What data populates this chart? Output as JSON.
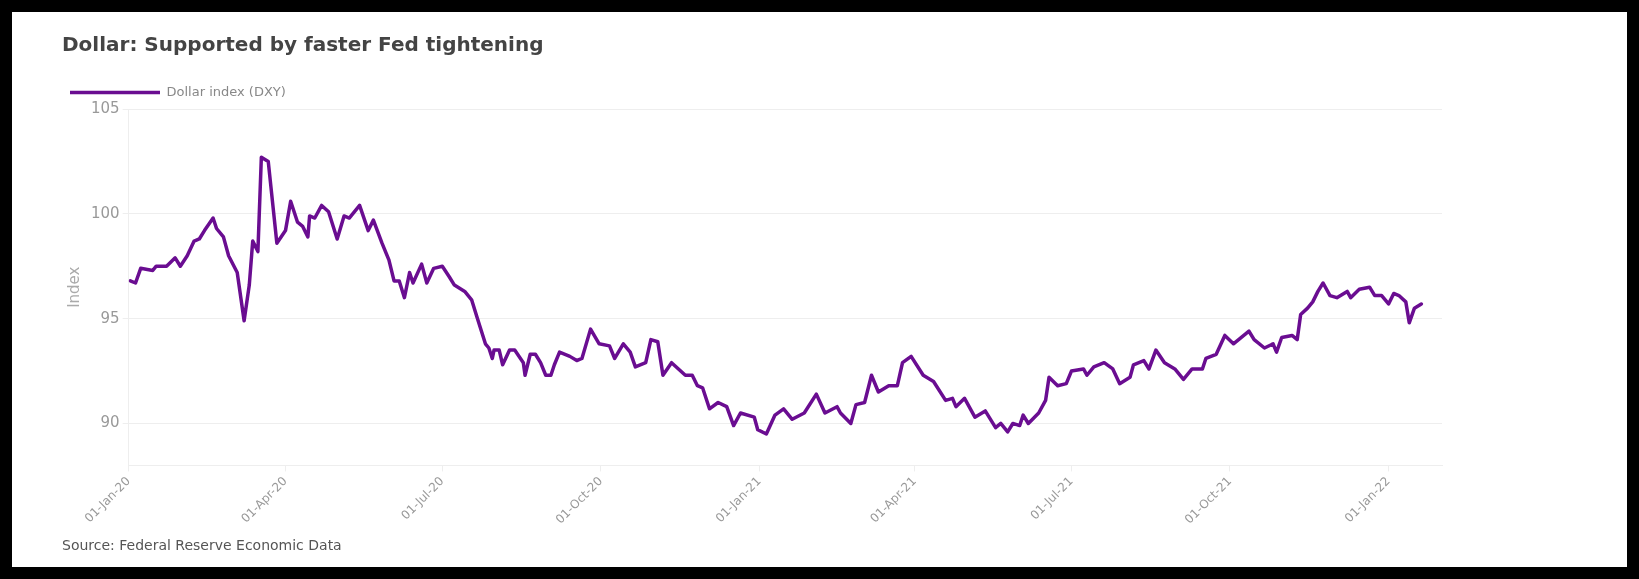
{
  "chart_data": {
    "type": "line",
    "title": "Dollar: Supported by faster Fed tightening",
    "ylabel": "Index",
    "annotations": [
      "Source: Federal Reserve Economic Data"
    ],
    "legend": "top left",
    "grid": "y",
    "marker": "none",
    "line_style": "solid",
    "xlim": [
      "2020-01-01",
      "2022-02-01"
    ],
    "xticks": [
      {
        "value": "2020-01-01",
        "label": "01-Jan-20"
      },
      {
        "value": "2020-04-01",
        "label": "01-Apr-20"
      },
      {
        "value": "2020-07-01",
        "label": "01-Jul-20"
      },
      {
        "value": "2020-10-01",
        "label": "01-Oct-20"
      },
      {
        "value": "2021-01-01",
        "label": "01-Jan-21"
      },
      {
        "value": "2021-04-01",
        "label": "01-Apr-21"
      },
      {
        "value": "2021-07-01",
        "label": "01-Jul-21"
      },
      {
        "value": "2021-10-01",
        "label": "01-Oct-21"
      },
      {
        "value": "2022-01-01",
        "label": "01-Jan-22"
      }
    ],
    "ylim": [
      88,
      105
    ],
    "yticks": [
      90,
      95,
      100,
      105
    ],
    "x": [
      "2020-01-02",
      "2020-01-05",
      "2020-01-08",
      "2020-01-15",
      "2020-01-17",
      "2020-01-23",
      "2020-01-28",
      "2020-01-31",
      "2020-02-04",
      "2020-02-08",
      "2020-02-11",
      "2020-02-14",
      "2020-02-19",
      "2020-02-21",
      "2020-02-25",
      "2020-02-28",
      "2020-03-04",
      "2020-03-08",
      "2020-03-11",
      "2020-03-13",
      "2020-03-16",
      "2020-03-18",
      "2020-03-22",
      "2020-03-27",
      "2020-04-01",
      "2020-04-04",
      "2020-04-08",
      "2020-04-11",
      "2020-04-14",
      "2020-04-15",
      "2020-04-18",
      "2020-04-22",
      "2020-04-26",
      "2020-05-01",
      "2020-05-05",
      "2020-05-08",
      "2020-05-14",
      "2020-05-19",
      "2020-05-22",
      "2020-05-27",
      "2020-05-31",
      "2020-06-03",
      "2020-06-06",
      "2020-06-09",
      "2020-06-12",
      "2020-06-14",
      "2020-06-19",
      "2020-06-22",
      "2020-06-26",
      "2020-07-01",
      "2020-07-05",
      "2020-07-08",
      "2020-07-14",
      "2020-07-18",
      "2020-07-21",
      "2020-07-26",
      "2020-07-28",
      "2020-07-30",
      "2020-07-31",
      "2020-08-03",
      "2020-08-05",
      "2020-08-09",
      "2020-08-12",
      "2020-08-17",
      "2020-08-18",
      "2020-08-21",
      "2020-08-24",
      "2020-08-27",
      "2020-08-30",
      "2020-09-02",
      "2020-09-04",
      "2020-09-07",
      "2020-09-13",
      "2020-09-17",
      "2020-09-20",
      "2020-09-25",
      "2020-09-30",
      "2020-10-06",
      "2020-10-09",
      "2020-10-14",
      "2020-10-18",
      "2020-10-21",
      "2020-10-27",
      "2020-10-30",
      "2020-11-03",
      "2020-11-06",
      "2020-11-11",
      "2020-11-19",
      "2020-11-23",
      "2020-11-26",
      "2020-11-29",
      "2020-12-03",
      "2020-12-08",
      "2020-12-13",
      "2020-12-17",
      "2020-12-21",
      "2020-12-29",
      "2020-12-31",
      "2021-01-05",
      "2021-01-10",
      "2021-01-15",
      "2021-01-20",
      "2021-01-27",
      "2021-02-03",
      "2021-02-08",
      "2021-02-15",
      "2021-02-17",
      "2021-02-23",
      "2021-02-26",
      "2021-03-03",
      "2021-03-07",
      "2021-03-11",
      "2021-03-17",
      "2021-03-22",
      "2021-03-25",
      "2021-03-30",
      "2021-04-06",
      "2021-04-12",
      "2021-04-19",
      "2021-04-23",
      "2021-04-25",
      "2021-04-30",
      "2021-05-06",
      "2021-05-12",
      "2021-05-18",
      "2021-05-21",
      "2021-05-25",
      "2021-05-28",
      "2021-06-01",
      "2021-06-03",
      "2021-06-06",
      "2021-06-12",
      "2021-06-16",
      "2021-06-18",
      "2021-06-23",
      "2021-06-28",
      "2021-07-01",
      "2021-07-08",
      "2021-07-10",
      "2021-07-14",
      "2021-07-20",
      "2021-07-25",
      "2021-07-29",
      "2021-08-04",
      "2021-08-06",
      "2021-08-12",
      "2021-08-15",
      "2021-08-19",
      "2021-08-24",
      "2021-08-30",
      "2021-09-04",
      "2021-09-09",
      "2021-09-15",
      "2021-09-17",
      "2021-09-23",
      "2021-09-28",
      "2021-10-03",
      "2021-10-12",
      "2021-10-15",
      "2021-10-21",
      "2021-10-26",
      "2021-10-28",
      "2021-10-31",
      "2021-11-06",
      "2021-11-09",
      "2021-11-11",
      "2021-11-15",
      "2021-11-18",
      "2021-11-21",
      "2021-11-24",
      "2021-11-28",
      "2021-12-02",
      "2021-12-08",
      "2021-12-10",
      "2021-12-15",
      "2021-12-21",
      "2021-12-24",
      "2021-12-28",
      "2022-01-01",
      "2022-01-04",
      "2022-01-07",
      "2022-01-11",
      "2022-01-13",
      "2022-01-16",
      "2022-01-20"
    ],
    "series": [
      {
        "name": "Dollar index (DXY)",
        "color": "#6a0d91",
        "values": [
          96.8,
          96.7,
          97.4,
          97.3,
          97.5,
          97.5,
          97.9,
          97.5,
          98.0,
          98.7,
          98.8,
          99.2,
          99.8,
          99.3,
          98.9,
          98.0,
          97.2,
          94.9,
          96.6,
          98.7,
          98.2,
          102.7,
          102.5,
          98.6,
          99.2,
          100.6,
          99.6,
          99.4,
          98.9,
          99.9,
          99.8,
          100.4,
          100.1,
          98.8,
          99.9,
          99.8,
          100.4,
          99.2,
          99.7,
          98.6,
          97.8,
          96.8,
          96.8,
          96.0,
          97.2,
          96.7,
          97.6,
          96.7,
          97.4,
          97.5,
          97.0,
          96.6,
          96.3,
          95.9,
          95.1,
          93.8,
          93.6,
          93.1,
          93.5,
          93.5,
          92.8,
          93.5,
          93.5,
          92.9,
          92.3,
          93.3,
          93.3,
          92.9,
          92.3,
          92.3,
          92.8,
          93.4,
          93.2,
          93.0,
          93.1,
          94.5,
          93.8,
          93.7,
          93.1,
          93.8,
          93.4,
          92.7,
          92.9,
          94.0,
          93.9,
          92.3,
          92.9,
          92.3,
          92.3,
          91.8,
          91.7,
          90.7,
          91.0,
          90.8,
          89.9,
          90.5,
          90.3,
          89.7,
          89.5,
          90.4,
          90.7,
          90.2,
          90.5,
          91.4,
          90.5,
          90.8,
          90.5,
          90.0,
          90.9,
          91.0,
          92.3,
          91.5,
          91.8,
          91.8,
          92.9,
          93.2,
          92.3,
          92.0,
          91.1,
          91.2,
          90.8,
          91.2,
          90.3,
          90.6,
          89.8,
          90.0,
          89.6,
          90.0,
          89.9,
          90.4,
          90.0,
          90.5,
          91.1,
          92.2,
          91.8,
          91.9,
          92.5,
          92.6,
          92.3,
          92.7,
          92.9,
          92.6,
          91.9,
          92.2,
          92.8,
          93.0,
          92.6,
          93.5,
          92.9,
          92.6,
          92.1,
          92.6,
          92.6,
          93.1,
          93.3,
          94.2,
          93.8,
          94.4,
          94.0,
          93.6,
          93.8,
          93.4,
          94.1,
          94.2,
          94.0,
          95.2,
          95.5,
          95.8,
          96.3,
          96.7,
          96.1,
          96.0,
          96.3,
          96.0,
          96.4,
          96.5,
          96.1,
          96.1,
          95.7,
          96.2,
          96.1,
          95.8,
          94.8,
          95.5,
          95.7
        ]
      }
    ]
  }
}
